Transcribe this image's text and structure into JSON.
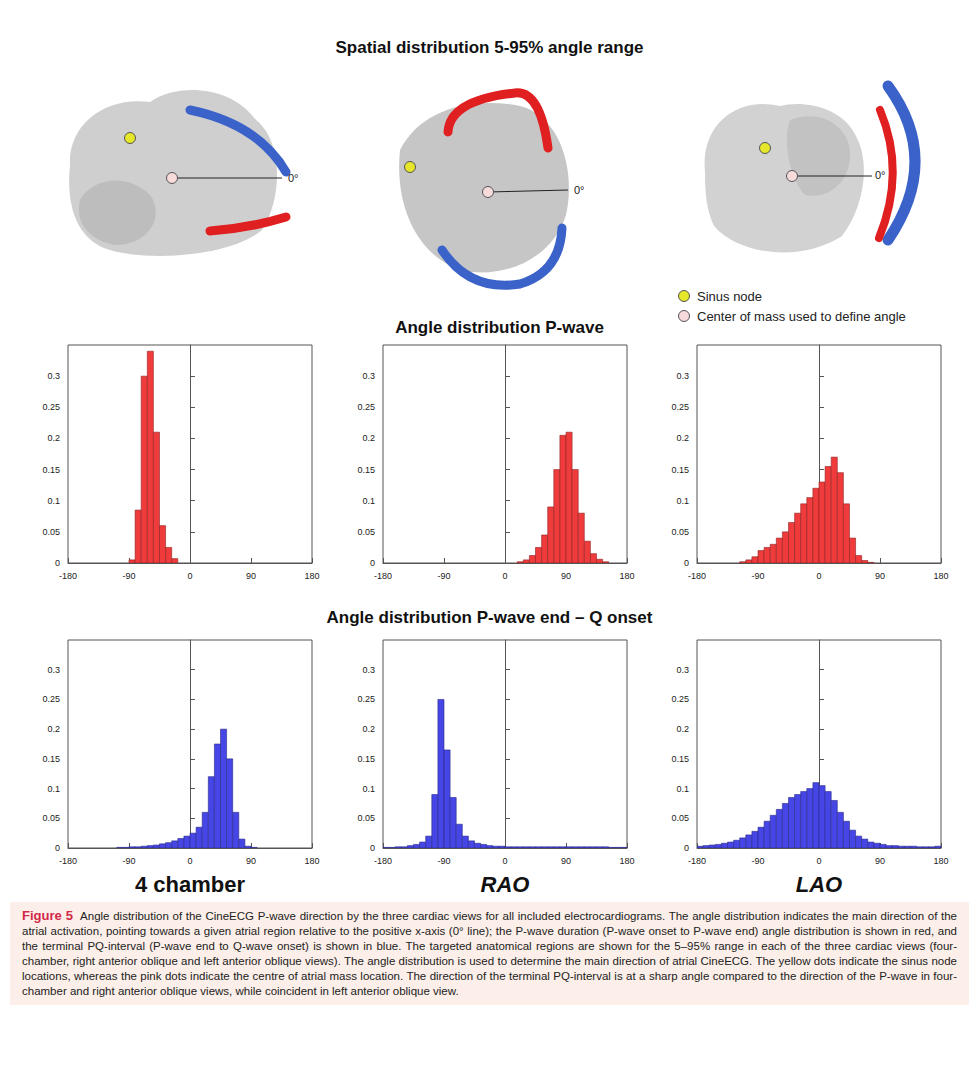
{
  "header": {
    "title": "Spatial distribution 5-95% angle range"
  },
  "diagram": {
    "zero_label": "0°"
  },
  "legend": [
    {
      "label": "Sinus node",
      "color": "#e6e62a"
    },
    {
      "label": "Center of mass used to define angle",
      "color": "#f7dada"
    }
  ],
  "sections": [
    "Angle distribution P-wave",
    "Angle distribution P-wave end – Q onset"
  ],
  "chart_data": [
    {
      "type": "histogram",
      "color": "#ef3b3b",
      "grid": false,
      "bins": [
        -180,
        -171,
        -162,
        -153,
        -144,
        -135,
        -126,
        -117,
        -108,
        -99,
        -90,
        -81,
        -72,
        -63,
        -54,
        -45,
        -36,
        -27,
        -18,
        -9,
        0,
        9,
        18,
        27,
        36,
        45,
        54,
        63,
        72,
        81,
        90,
        99,
        108,
        117,
        126,
        135,
        144,
        153,
        162,
        171,
        180
      ],
      "values": [
        0,
        0,
        0,
        0,
        0,
        0,
        0,
        0,
        0,
        0,
        0.005,
        0.085,
        0.3,
        0.34,
        0.21,
        0.06,
        0.025,
        0.007,
        0,
        0,
        0,
        0,
        0,
        0,
        0,
        0,
        0,
        0,
        0,
        0,
        0,
        0,
        0,
        0,
        0,
        0,
        0,
        0,
        0,
        0
      ],
      "xlim": [
        -180,
        180
      ],
      "xticks": [
        -180,
        -90,
        0,
        90,
        180
      ],
      "ylim": [
        0,
        0.35
      ],
      "yticks": [
        0,
        0.05,
        0.1,
        0.15,
        0.2,
        0.25,
        0.3
      ]
    },
    {
      "type": "histogram",
      "color": "#ef3b3b",
      "grid": false,
      "bins": [
        -180,
        -171,
        -162,
        -153,
        -144,
        -135,
        -126,
        -117,
        -108,
        -99,
        -90,
        -81,
        -72,
        -63,
        -54,
        -45,
        -36,
        -27,
        -18,
        -9,
        0,
        9,
        18,
        27,
        36,
        45,
        54,
        63,
        72,
        81,
        90,
        99,
        108,
        117,
        126,
        135,
        144,
        153,
        162,
        171,
        180
      ],
      "values": [
        0,
        0,
        0,
        0,
        0,
        0,
        0,
        0,
        0,
        0,
        0,
        0,
        0,
        0,
        0,
        0,
        0,
        0,
        0,
        0,
        0,
        0,
        0.002,
        0.005,
        0.012,
        0.025,
        0.045,
        0.09,
        0.15,
        0.205,
        0.21,
        0.15,
        0.08,
        0.035,
        0.015,
        0.006,
        0.002,
        0,
        0,
        0
      ],
      "xlim": [
        -180,
        180
      ],
      "xticks": [
        -180,
        -90,
        0,
        90,
        180
      ],
      "ylim": [
        0,
        0.35
      ],
      "yticks": [
        0,
        0.05,
        0.1,
        0.15,
        0.2,
        0.25,
        0.3
      ]
    },
    {
      "type": "histogram",
      "color": "#ef3b3b",
      "grid": false,
      "bins": [
        -180,
        -171,
        -162,
        -153,
        -144,
        -135,
        -126,
        -117,
        -108,
        -99,
        -90,
        -81,
        -72,
        -63,
        -54,
        -45,
        -36,
        -27,
        -18,
        -9,
        0,
        9,
        18,
        27,
        36,
        45,
        54,
        63,
        72,
        81,
        90,
        99,
        108,
        117,
        126,
        135,
        144,
        153,
        162,
        171,
        180
      ],
      "values": [
        0,
        0,
        0,
        0,
        0,
        0,
        0,
        0.002,
        0.005,
        0.01,
        0.02,
        0.025,
        0.03,
        0.04,
        0.05,
        0.065,
        0.08,
        0.095,
        0.105,
        0.12,
        0.13,
        0.155,
        0.17,
        0.145,
        0.095,
        0.04,
        0.012,
        0.004,
        0.001,
        0,
        0,
        0,
        0,
        0,
        0,
        0,
        0,
        0,
        0,
        0
      ],
      "xlim": [
        -180,
        180
      ],
      "xticks": [
        -180,
        -90,
        0,
        90,
        180
      ],
      "ylim": [
        0,
        0.35
      ],
      "yticks": [
        0,
        0.05,
        0.1,
        0.15,
        0.2,
        0.25,
        0.3
      ]
    },
    {
      "type": "histogram",
      "color": "#4646e6",
      "grid": false,
      "bins": [
        -180,
        -171,
        -162,
        -153,
        -144,
        -135,
        -126,
        -117,
        -108,
        -99,
        -90,
        -81,
        -72,
        -63,
        -54,
        -45,
        -36,
        -27,
        -18,
        -9,
        0,
        9,
        18,
        27,
        36,
        45,
        54,
        63,
        72,
        81,
        90,
        99,
        108,
        117,
        126,
        135,
        144,
        153,
        162,
        171,
        180
      ],
      "values": [
        0,
        0,
        0,
        0,
        0,
        0,
        0,
        0,
        0.001,
        0.001,
        0.002,
        0.002,
        0.003,
        0.004,
        0.005,
        0.007,
        0.009,
        0.012,
        0.016,
        0.02,
        0.025,
        0.035,
        0.06,
        0.12,
        0.175,
        0.2,
        0.15,
        0.06,
        0.015,
        0.003,
        0.001,
        0,
        0,
        0,
        0,
        0,
        0,
        0,
        0,
        0
      ],
      "xlim": [
        -180,
        180
      ],
      "xticks": [
        -180,
        -90,
        0,
        90,
        180
      ],
      "ylim": [
        0,
        0.35
      ],
      "yticks": [
        0,
        0.05,
        0.1,
        0.15,
        0.2,
        0.25,
        0.3
      ]
    },
    {
      "type": "histogram",
      "color": "#4646e6",
      "grid": false,
      "bins": [
        -180,
        -171,
        -162,
        -153,
        -144,
        -135,
        -126,
        -117,
        -108,
        -99,
        -90,
        -81,
        -72,
        -63,
        -54,
        -45,
        -36,
        -27,
        -18,
        -9,
        0,
        9,
        18,
        27,
        36,
        45,
        54,
        63,
        72,
        81,
        90,
        99,
        108,
        117,
        126,
        135,
        144,
        153,
        162,
        171,
        180
      ],
      "values": [
        0.001,
        0.001,
        0.002,
        0.002,
        0.004,
        0.006,
        0.01,
        0.02,
        0.09,
        0.25,
        0.165,
        0.085,
        0.04,
        0.02,
        0.012,
        0.008,
        0.006,
        0.004,
        0.003,
        0.003,
        0.002,
        0.002,
        0.002,
        0.002,
        0.002,
        0.002,
        0.002,
        0.002,
        0.002,
        0.002,
        0.002,
        0.002,
        0.002,
        0.002,
        0.002,
        0.002,
        0.002,
        0.001,
        0.001,
        0.001
      ],
      "xlim": [
        -180,
        180
      ],
      "xticks": [
        -180,
        -90,
        0,
        90,
        180
      ],
      "ylim": [
        0,
        0.35
      ],
      "yticks": [
        0,
        0.05,
        0.1,
        0.15,
        0.2,
        0.25,
        0.3
      ]
    },
    {
      "type": "histogram",
      "color": "#4646e6",
      "grid": false,
      "bins": [
        -180,
        -171,
        -162,
        -153,
        -144,
        -135,
        -126,
        -117,
        -108,
        -99,
        -90,
        -81,
        -72,
        -63,
        -54,
        -45,
        -36,
        -27,
        -18,
        -9,
        0,
        9,
        18,
        27,
        36,
        45,
        54,
        63,
        72,
        81,
        90,
        99,
        108,
        117,
        126,
        135,
        144,
        153,
        162,
        171,
        180
      ],
      "values": [
        0.003,
        0.004,
        0.005,
        0.006,
        0.008,
        0.01,
        0.013,
        0.017,
        0.022,
        0.028,
        0.035,
        0.045,
        0.055,
        0.065,
        0.075,
        0.085,
        0.09,
        0.095,
        0.1,
        0.11,
        0.105,
        0.095,
        0.08,
        0.06,
        0.045,
        0.03,
        0.02,
        0.015,
        0.01,
        0.008,
        0.006,
        0.004,
        0.004,
        0.003,
        0.003,
        0.003,
        0.002,
        0.002,
        0.002,
        0.003
      ],
      "xlim": [
        -180,
        180
      ],
      "xticks": [
        -180,
        -90,
        0,
        90,
        180
      ],
      "ylim": [
        0,
        0.35
      ],
      "yticks": [
        0,
        0.05,
        0.1,
        0.15,
        0.2,
        0.25,
        0.3
      ]
    }
  ],
  "views": [
    "4 chamber",
    "RAO",
    "LAO"
  ],
  "caption": {
    "label": "Figure 5",
    "text": "Angle distribution of the CineECG P-wave direction by the three cardiac views for all included electrocardiograms. The angle distribution indicates the main direction of the atrial activation, pointing towards a given atrial region relative to the positive x-axis (0° line); the P-wave duration (P-wave onset to P-wave end) angle distribution is shown in red, and the terminal PQ-interval (P-wave end to Q-wave onset) is shown in blue. The targeted anatomical regions are shown for the 5–95% range in each of the three cardiac views (four-chamber, right anterior oblique and left anterior oblique views). The angle distribution is used to determine the main direction of atrial CineECG. The yellow dots indicate the sinus node locations, whereas the pink dots indicate the centre of atrial mass location. The direction of the terminal PQ-interval is at a sharp angle compared to the direction of the P-wave in four-chamber and right anterior oblique views, while coincident in left anterior oblique view."
  }
}
